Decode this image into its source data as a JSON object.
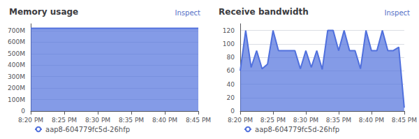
{
  "chart_data": [
    {
      "type": "area",
      "title": "Memory usage",
      "annotations": [
        "Inspect"
      ],
      "x": [
        0,
        1,
        2,
        3,
        4,
        5,
        6,
        7,
        8,
        9,
        10,
        11,
        12,
        13,
        14,
        15,
        16,
        17,
        18,
        19,
        20
      ],
      "series": [
        {
          "name": "aap8-604779fc5d-26hfp",
          "values": [
            720,
            720,
            720,
            720,
            720,
            720,
            720,
            720,
            720,
            720,
            720,
            720,
            720,
            720,
            720,
            720,
            720,
            720,
            720,
            720,
            720
          ]
        }
      ],
      "xlim": [
        0,
        20
      ],
      "xticks": [
        {
          "value": 0,
          "label": "8:20 PM"
        },
        {
          "value": 4,
          "label": "8:25 PM"
        },
        {
          "value": 8,
          "label": "8:30 PM"
        },
        {
          "value": 12,
          "label": "8:35 PM"
        },
        {
          "value": 16,
          "label": "8:40 PM"
        },
        {
          "value": 20,
          "label": "8:45 PM"
        }
      ],
      "ylim": [
        0,
        760
      ],
      "yticks": [
        0,
        {
          "value": 100,
          "label": "100M"
        },
        {
          "value": 200,
          "label": "200M"
        },
        {
          "value": 300,
          "label": "300M"
        },
        {
          "value": 400,
          "label": "400M"
        },
        {
          "value": 500,
          "label": "500M"
        },
        {
          "value": 600,
          "label": "600M"
        },
        {
          "value": 700,
          "label": "700M"
        }
      ],
      "grid": true,
      "legend": "lower left"
    },
    {
      "type": "area",
      "title": "Receive bandwidth",
      "annotations": [
        "Inspect"
      ],
      "x": [
        0,
        1,
        2,
        3,
        4,
        5,
        6,
        7,
        8,
        9,
        10,
        11,
        12,
        13,
        14,
        15,
        16,
        17,
        18,
        19,
        20,
        21,
        22,
        23,
        24,
        25,
        26,
        27,
        28,
        29,
        30
      ],
      "series": [
        {
          "name": "aap8-604779fc5d-26hfp",
          "values": [
            60,
            120,
            65,
            90,
            63,
            70,
            120,
            90,
            90,
            90,
            90,
            63,
            90,
            65,
            90,
            62,
            120,
            120,
            90,
            120,
            90,
            90,
            63,
            120,
            90,
            90,
            120,
            90,
            90,
            95,
            5
          ]
        }
      ],
      "xlim": [
        0,
        30
      ],
      "xticks": [
        {
          "value": 0,
          "label": "8:20 PM"
        },
        {
          "value": 6,
          "label": "8:25 PM"
        },
        {
          "value": 12,
          "label": "8:30 PM"
        },
        {
          "value": 18,
          "label": "8:35 PM"
        },
        {
          "value": 24,
          "label": "8:40 PM"
        },
        {
          "value": 30,
          "label": "8:45 PM"
        }
      ],
      "ylim": [
        0,
        130
      ],
      "yticks": [
        0,
        20,
        40,
        60,
        80,
        100,
        120
      ],
      "grid": true,
      "legend": "lower left"
    }
  ]
}
